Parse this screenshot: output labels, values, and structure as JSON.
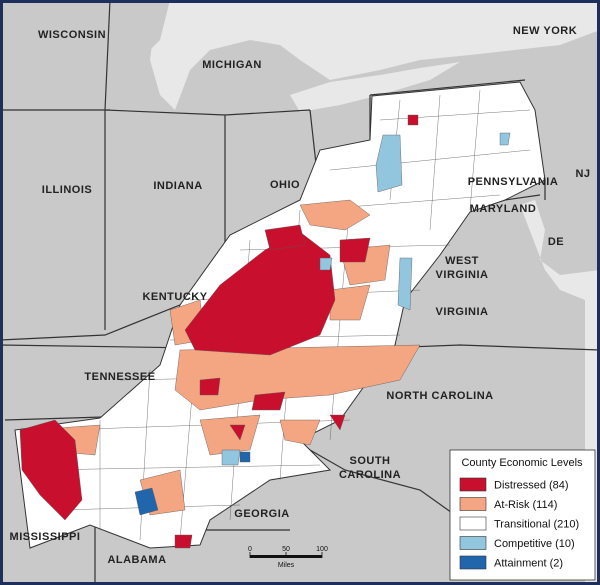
{
  "map": {
    "state_labels": [
      {
        "lines": [
          "WISCONSIN"
        ]
      },
      {
        "lines": [
          "MICHIGAN"
        ]
      },
      {
        "lines": [
          "NEW YORK"
        ]
      },
      {
        "lines": [
          "ILLINOIS"
        ]
      },
      {
        "lines": [
          "INDIANA"
        ]
      },
      {
        "lines": [
          "OHIO"
        ]
      },
      {
        "lines": [
          "PENNSYLVANIA"
        ]
      },
      {
        "lines": [
          "NJ"
        ]
      },
      {
        "lines": [
          "MARYLAND"
        ]
      },
      {
        "lines": [
          "DE"
        ]
      },
      {
        "lines": [
          "WEST",
          "VIRGINIA"
        ]
      },
      {
        "lines": [
          "KENTUCKY"
        ]
      },
      {
        "lines": [
          "VIRGINIA"
        ]
      },
      {
        "lines": [
          "TENNESSEE"
        ]
      },
      {
        "lines": [
          "NORTH CAROLINA"
        ]
      },
      {
        "lines": [
          "SOUTH",
          "CAROLINA"
        ]
      },
      {
        "lines": [
          "GEORGIA"
        ]
      },
      {
        "lines": [
          "MISSISSIPPI"
        ]
      },
      {
        "lines": [
          "ALABAMA"
        ]
      }
    ],
    "legend": {
      "title": "County Economic Levels",
      "items": [
        {
          "label": "Distressed (84)",
          "color": "#c8102e"
        },
        {
          "label": "At-Risk (114)",
          "color": "#f4a582"
        },
        {
          "label": "Transitional (210)",
          "color": "#ffffff"
        },
        {
          "label": "Competitive (10)",
          "color": "#92c5de"
        },
        {
          "label": "Attainment (2)",
          "color": "#2166ac"
        }
      ]
    },
    "scale_bar": {
      "ticks": [
        0,
        50,
        100
      ],
      "unit": "Miles"
    }
  }
}
